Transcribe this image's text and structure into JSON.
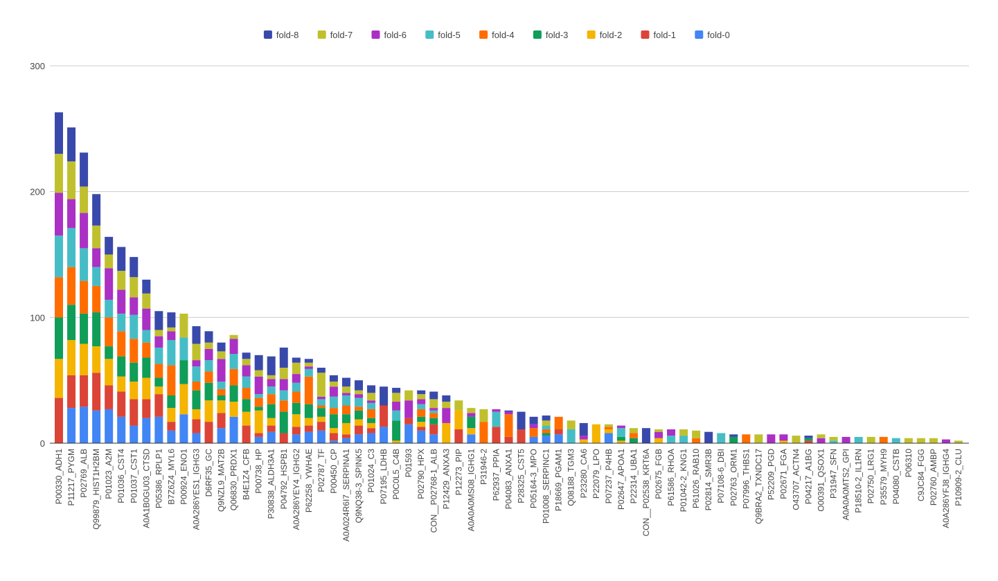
{
  "chart_data": {
    "type": "bar",
    "stacked": true,
    "title": "",
    "xlabel": "",
    "ylabel": "",
    "ylim": [
      0,
      300
    ],
    "yticks": [
      "0",
      "100",
      "200",
      "300"
    ],
    "grid": true,
    "legend_position": "top-center",
    "categories": [
      "P00330_ADH1",
      "P11217_PYGM",
      "P02769_ALB",
      "Q99879_HIST1H2BM",
      "P01023_A2M",
      "P01036_CST4",
      "P01037_CST1",
      "A0A1B0GU03_CTSD",
      "P05386_RPLP1",
      "B7Z6Z4_MYL6",
      "P00924_ENO1",
      "A0A286YES1_IGHG3",
      "D6RF35_GC",
      "Q9NZL9_MAT2B",
      "Q06830_PRDX1",
      "B4E1Z4_CFB",
      "P00738_HP",
      "P30838_ALDH3A1",
      "P04792_HSPB1",
      "A0A286YEY4_IGHG2",
      "P62258_YWHAE",
      "P02787_TF",
      "P00450_CP",
      "A0A024R6I7_SERPINA1",
      "Q9NQ38-3_SPINK5",
      "P01024_C3",
      "P07195_LDHB",
      "P0C0L5_C4B",
      "P01593",
      "P02790_HPX",
      "CON__P02768-1_ALB",
      "P12429_ANXA3",
      "P12273_PIP",
      "A0A0A0MS08_IGHG1",
      "P31946-2",
      "P62937_PPIA",
      "P04083_ANXA1",
      "P28325_CST5",
      "P05164-3_MPO",
      "P01008_SERPINC1",
      "P18669_PGAM1",
      "Q08188_TGM3",
      "P23280_CA6",
      "P22079_LPO",
      "P07237_P4HB",
      "P02647_APOA1",
      "P22314_UBA1",
      "CON__P02538_KRT6A",
      "P02675_FGB",
      "P61586_RHOA",
      "P01042-2_KNG1",
      "P61026_RAB10",
      "P02814_SMR3B",
      "P07108-6_DBI",
      "P02763_ORM1",
      "P07996_THBS1",
      "Q9BRA2_TXNDC17",
      "P52209_PGD",
      "P02671_FGA",
      "O43707_ACTN4",
      "P04217_A1BG",
      "O00391_QSOX1",
      "P31947_SFN",
      "A0A0A0MTS2_GPI",
      "P18510-2_IL1RN",
      "P02750_LRG1",
      "P35579_MYH9",
      "P04080_CSTB",
      "P06310",
      "C9JC84_FGG",
      "P02760_AMBP",
      "A0A286YFJ8_IGHG4",
      "P10909-2_CLU"
    ],
    "series": [
      {
        "name": "fold-0",
        "color": "#4285F4",
        "values": [
          0,
          28,
          29,
          26,
          27,
          21,
          14,
          20,
          21,
          10,
          23,
          8,
          0,
          12,
          21,
          0,
          5,
          9,
          0,
          7,
          9,
          10,
          2,
          4,
          7,
          8,
          13,
          0,
          15,
          10,
          7,
          0,
          0,
          7,
          0,
          0,
          0,
          0,
          5,
          6,
          7,
          0,
          0,
          0,
          8,
          0,
          0,
          0,
          0,
          0,
          0,
          0,
          0,
          0,
          0,
          0,
          0,
          0,
          0,
          0,
          0,
          0,
          0,
          0,
          0,
          0,
          0,
          0,
          0,
          0,
          0,
          0,
          0
        ]
      },
      {
        "name": "fold-1",
        "color": "#DB4437",
        "values": [
          36,
          26,
          25,
          30,
          19,
          20,
          21,
          15,
          18,
          7,
          0,
          11,
          17,
          12,
          0,
          14,
          3,
          5,
          8,
          6,
          5,
          7,
          6,
          3,
          7,
          4,
          17,
          0,
          5,
          3,
          8,
          0,
          11,
          0,
          0,
          13,
          5,
          11,
          0,
          0,
          4,
          0,
          0,
          0,
          0,
          0,
          0,
          0,
          0,
          0,
          0,
          0,
          0,
          0,
          0,
          0,
          0,
          0,
          0,
          0,
          2,
          0,
          0,
          0,
          0,
          0,
          0,
          0,
          0,
          0,
          0,
          0,
          0
        ]
      },
      {
        "name": "fold-2",
        "color": "#F4B400",
        "values": [
          31,
          28,
          25,
          21,
          21,
          12,
          14,
          17,
          6,
          11,
          24,
          8,
          17,
          10,
          12,
          11,
          18,
          6,
          0,
          10,
          6,
          4,
          4,
          9,
          5,
          4,
          0,
          2,
          0,
          4,
          0,
          16,
          15,
          5,
          0,
          0,
          0,
          0,
          0,
          0,
          0,
          0,
          3,
          15,
          3,
          2,
          0,
          0,
          4,
          0,
          0,
          0,
          0,
          0,
          0,
          0,
          0,
          0,
          2,
          0,
          0,
          0,
          0,
          0,
          0,
          0,
          0,
          0,
          0,
          0,
          0,
          0,
          0
        ]
      },
      {
        "name": "fold-3",
        "color": "#0F9D58",
        "values": [
          33,
          28,
          24,
          27,
          10,
          16,
          15,
          16,
          7,
          10,
          19,
          15,
          14,
          4,
          13,
          10,
          3,
          11,
          17,
          9,
          11,
          7,
          11,
          7,
          7,
          4,
          0,
          16,
          0,
          4,
          5,
          0,
          0,
          9,
          0,
          0,
          0,
          0,
          0,
          2,
          0,
          0,
          0,
          0,
          0,
          3,
          4,
          0,
          0,
          0,
          0,
          0,
          0,
          0,
          5,
          0,
          0,
          0,
          0,
          0,
          2,
          0,
          0,
          0,
          0,
          0,
          0,
          0,
          0,
          0,
          0,
          0,
          0
        ]
      },
      {
        "name": "fold-4",
        "color": "#FF6D00",
        "values": [
          32,
          30,
          26,
          21,
          23,
          20,
          19,
          12,
          11,
          24,
          0,
          7,
          9,
          5,
          13,
          9,
          7,
          8,
          9,
          9,
          22,
          2,
          5,
          7,
          3,
          7,
          0,
          0,
          0,
          6,
          4,
          0,
          0,
          0,
          17,
          0,
          18,
          0,
          7,
          3,
          10,
          0,
          0,
          0,
          2,
          0,
          4,
          0,
          0,
          0,
          0,
          4,
          0,
          0,
          0,
          7,
          0,
          0,
          0,
          0,
          0,
          0,
          0,
          0,
          0,
          0,
          5,
          0,
          0,
          0,
          0,
          0,
          0
        ]
      },
      {
        "name": "fold-5",
        "color": "#46BDC6",
        "values": [
          33,
          31,
          26,
          15,
          14,
          14,
          19,
          10,
          13,
          20,
          18,
          12,
          9,
          6,
          12,
          9,
          3,
          6,
          8,
          7,
          6,
          5,
          9,
          8,
          7,
          5,
          0,
          8,
          0,
          4,
          2,
          0,
          0,
          0,
          0,
          12,
          0,
          0,
          0,
          3,
          0,
          11,
          0,
          0,
          0,
          7,
          0,
          0,
          0,
          6,
          6,
          0,
          0,
          8,
          0,
          0,
          0,
          0,
          0,
          0,
          0,
          0,
          2,
          0,
          5,
          0,
          0,
          4,
          0,
          0,
          0,
          0,
          0
        ]
      },
      {
        "name": "fold-6",
        "color": "#AB30C4",
        "values": [
          34,
          23,
          28,
          15,
          25,
          19,
          14,
          17,
          9,
          7,
          0,
          5,
          9,
          18,
          12,
          9,
          14,
          6,
          9,
          7,
          2,
          2,
          8,
          2,
          3,
          2,
          0,
          7,
          14,
          4,
          2,
          12,
          0,
          3,
          0,
          2,
          2,
          0,
          3,
          0,
          0,
          0,
          3,
          0,
          0,
          2,
          0,
          0,
          5,
          5,
          0,
          0,
          0,
          0,
          0,
          0,
          0,
          7,
          5,
          0,
          0,
          4,
          0,
          5,
          0,
          0,
          0,
          0,
          0,
          0,
          0,
          3,
          0
        ]
      },
      {
        "name": "fold-7",
        "color": "#C0C02E",
        "values": [
          31,
          30,
          21,
          18,
          11,
          15,
          16,
          12,
          5,
          3,
          19,
          13,
          5,
          6,
          3,
          5,
          5,
          3,
          9,
          9,
          3,
          19,
          4,
          5,
          3,
          6,
          0,
          7,
          8,
          4,
          7,
          5,
          8,
          4,
          10,
          0,
          0,
          0,
          0,
          4,
          0,
          7,
          0,
          0,
          2,
          0,
          4,
          0,
          2,
          0,
          5,
          6,
          0,
          0,
          0,
          0,
          7,
          0,
          0,
          6,
          0,
          3,
          3,
          0,
          0,
          5,
          0,
          0,
          4,
          4,
          4,
          0,
          2
        ]
      },
      {
        "name": "fold-8",
        "color": "#3949AB",
        "values": [
          33,
          27,
          27,
          25,
          14,
          19,
          16,
          11,
          15,
          12,
          0,
          14,
          9,
          7,
          0,
          5,
          12,
          15,
          16,
          4,
          3,
          4,
          5,
          7,
          8,
          6,
          15,
          4,
          0,
          3,
          6,
          5,
          0,
          0,
          0,
          0,
          1,
          14,
          6,
          4,
          0,
          0,
          10,
          0,
          0,
          0,
          0,
          12,
          0,
          0,
          0,
          0,
          9,
          0,
          2,
          0,
          0,
          0,
          0,
          0,
          2,
          0,
          0,
          0,
          0,
          0,
          0,
          0,
          0,
          0,
          0,
          0,
          0
        ]
      }
    ]
  }
}
